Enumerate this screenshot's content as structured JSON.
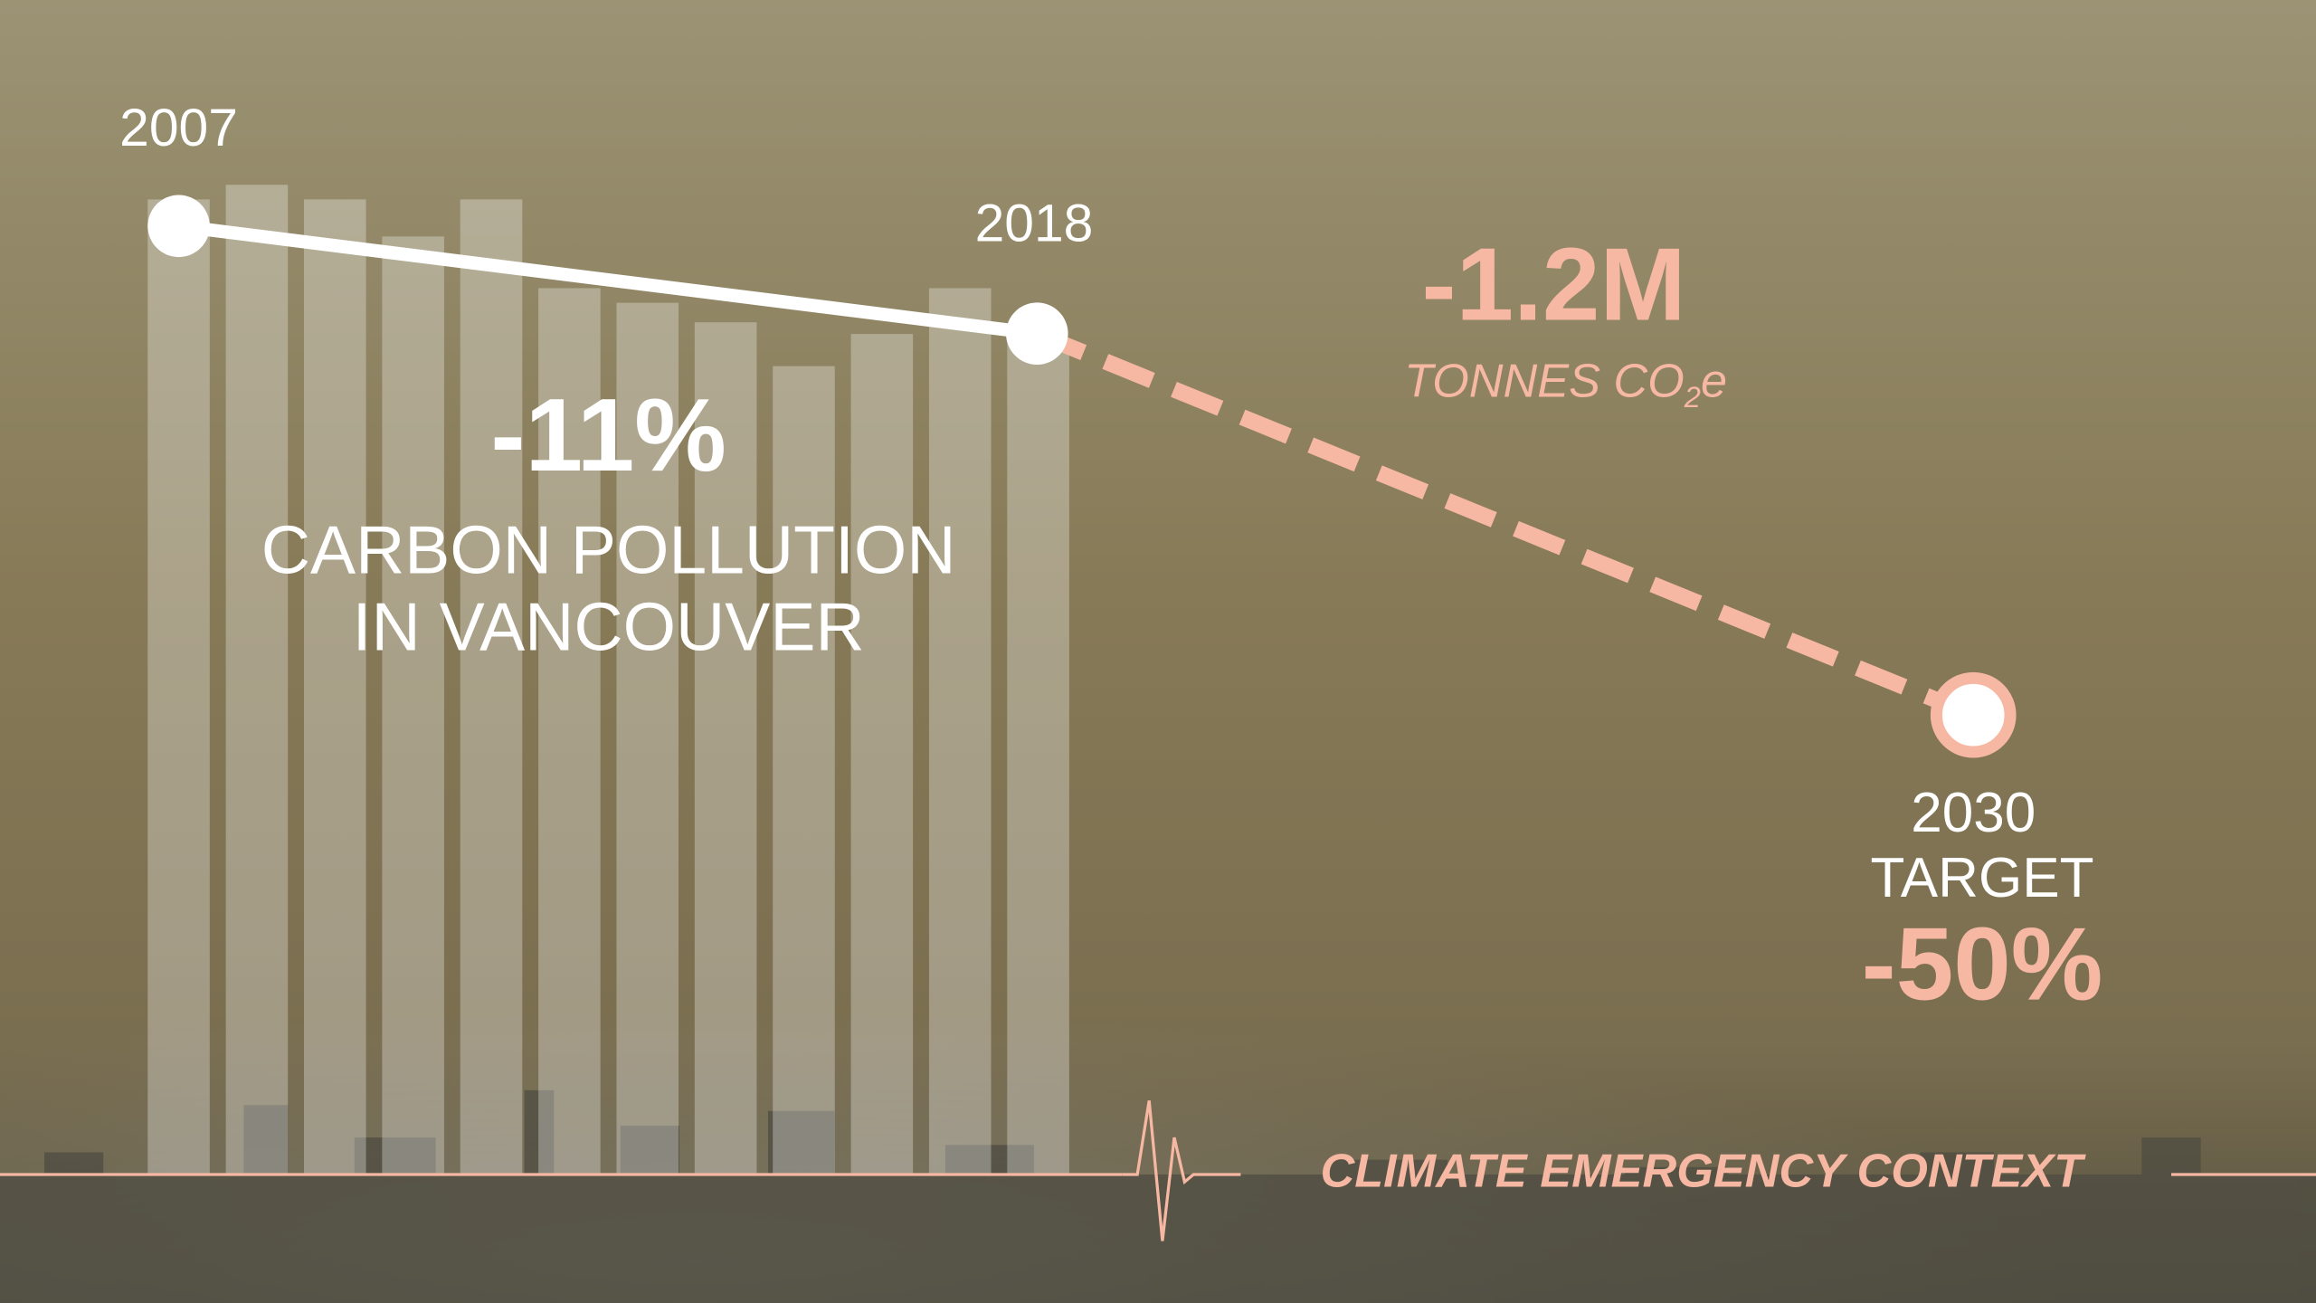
{
  "chart_data": [
    {
      "type": "bar",
      "values": [
        100,
        101.5,
        100,
        96.2,
        100,
        90.9,
        89.4,
        87.4,
        82.9,
        86.2,
        90.9,
        85.6
      ],
      "ylim": [
        0,
        100
      ],
      "color": "rgba(255,255,255,0.3)"
    },
    {
      "type": "line",
      "x": [
        2007,
        2018,
        2030
      ],
      "values": [
        100,
        89,
        50
      ],
      "xlim": [
        2007,
        2030
      ],
      "ylim": [
        0,
        100
      ],
      "color": "#ffffff",
      "projection_color": "#f6b8a3"
    }
  ],
  "annotations": {
    "change": "-11%",
    "subject_line1": "CARBON POLLUTION",
    "subject_line2": "IN VANCOUVER",
    "reduction": "-1.2M",
    "unit_parts": [
      "TONNES CO",
      "2",
      "e"
    ],
    "target_label": "TARGET",
    "target_change": "-50%",
    "footer": "CLIMATE EMERGENCY CONTEXT"
  }
}
